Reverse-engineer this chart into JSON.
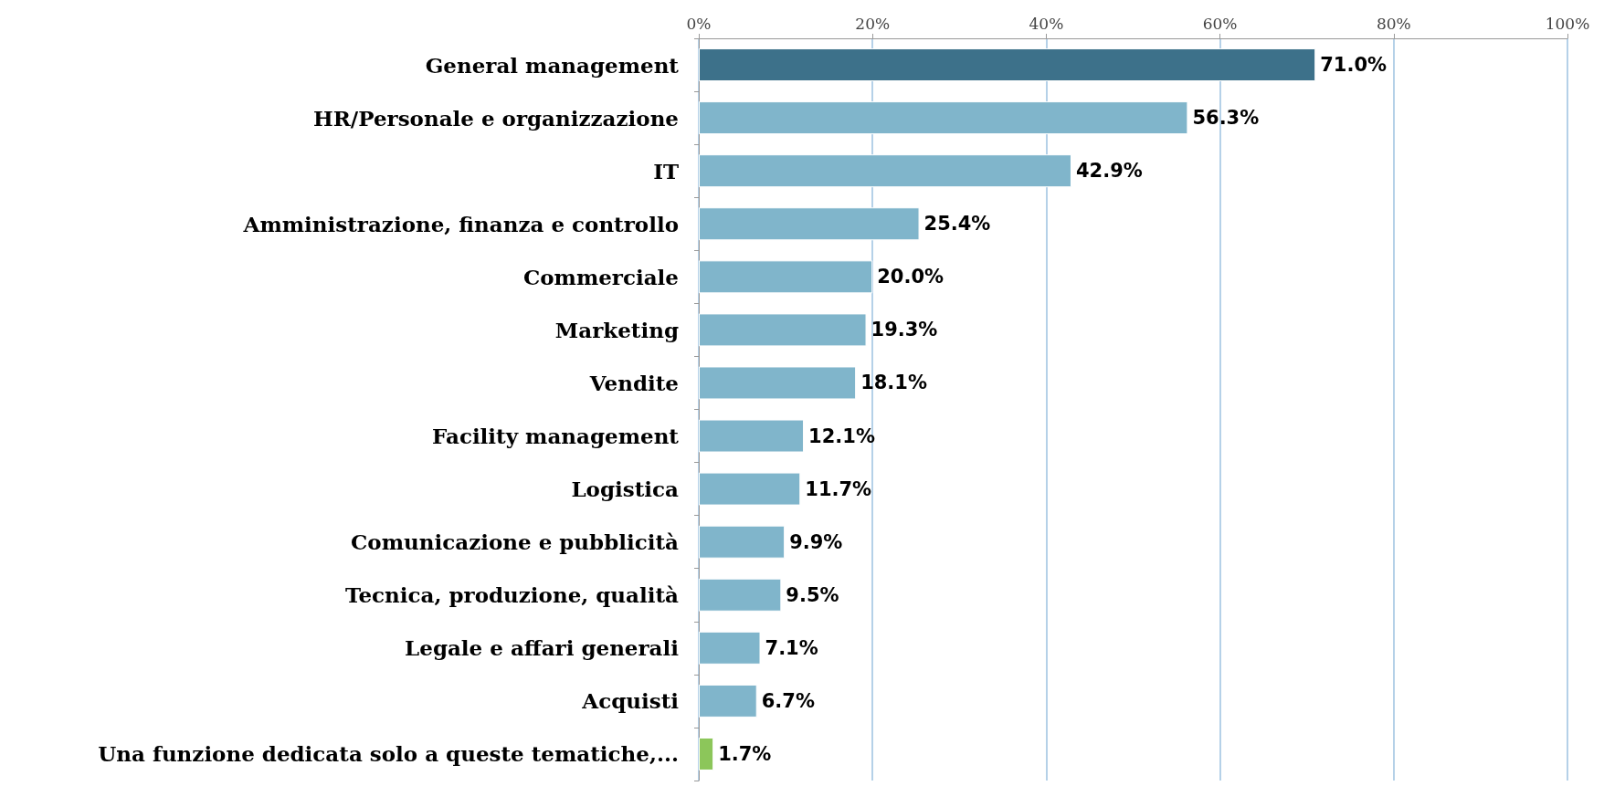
{
  "chart_data": {
    "type": "bar",
    "orientation": "horizontal",
    "categories": [
      "General management",
      "HR/Personale e organizzazione",
      "IT",
      "Amministrazione, finanza e controllo",
      "Commerciale",
      "Marketing",
      "Vendite",
      "Facility management",
      "Logistica",
      "Comunicazione e pubblicità",
      "Tecnica, produzione, qualità",
      "Legale e affari generali",
      "Acquisti",
      "Una funzione dedicata solo a queste tematiche,..."
    ],
    "values": [
      71.0,
      56.3,
      42.9,
      25.4,
      20.0,
      19.3,
      18.1,
      12.1,
      11.7,
      9.9,
      9.5,
      7.1,
      6.7,
      1.7
    ],
    "colors": [
      "#3d718a",
      "#80b5cb",
      "#80b5cb",
      "#80b5cb",
      "#80b5cb",
      "#80b5cb",
      "#80b5cb",
      "#80b5cb",
      "#80b5cb",
      "#80b5cb",
      "#80b5cb",
      "#80b5cb",
      "#80b5cb",
      "#8cc65a"
    ],
    "value_labels": [
      "71.0%",
      "56.3%",
      "42.9%",
      "25.4%",
      "20.0%",
      "19.3%",
      "18.1%",
      "12.1%",
      "11.7%",
      "9.9%",
      "9.5%",
      "7.1%",
      "6.7%",
      "1.7%"
    ],
    "xlim": [
      0,
      100
    ],
    "xticks": [
      {
        "value": 0,
        "label": "0%"
      },
      {
        "value": 20,
        "label": "20%"
      },
      {
        "value": 40,
        "label": "40%"
      },
      {
        "value": 60,
        "label": "60%"
      },
      {
        "value": 80,
        "label": "80%"
      },
      {
        "value": 100,
        "label": "100%"
      }
    ],
    "grid": "x"
  }
}
